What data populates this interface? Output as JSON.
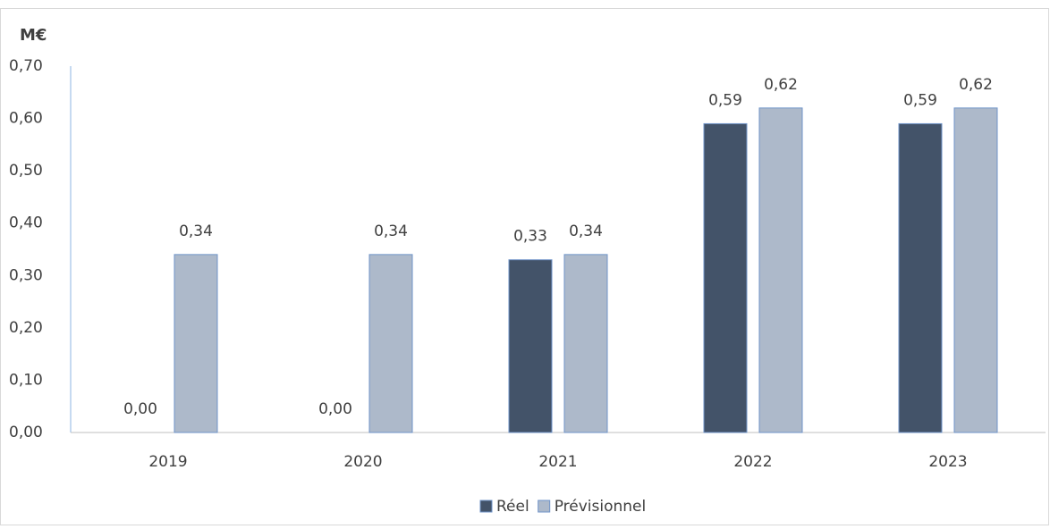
{
  "chart_data": {
    "type": "bar",
    "y_label": "M€",
    "categories": [
      "2019",
      "2020",
      "2021",
      "2022",
      "2023"
    ],
    "series": [
      {
        "name": "Réel",
        "color": "#435369",
        "values": [
          0,
          0,
          0.33,
          0.59,
          0.59
        ],
        "value_labels": [
          "0,00",
          "0,00",
          "0,33",
          "0,59",
          "0,59"
        ]
      },
      {
        "name": "Prévisionnel",
        "color": "#adb9ca",
        "values": [
          0.34,
          0.34,
          0.34,
          0.62,
          0.62
        ],
        "value_labels": [
          "0,34",
          "0,34",
          "0,34",
          "0,62",
          "0,62"
        ]
      }
    ],
    "ylim": [
      0,
      0.7
    ],
    "yticks": [
      {
        "value": 0,
        "label": "0,00"
      },
      {
        "value": 0.1,
        "label": "0,10"
      },
      {
        "value": 0.2,
        "label": "0,20"
      },
      {
        "value": 0.3,
        "label": "0,30"
      },
      {
        "value": 0.4,
        "label": "0,40"
      },
      {
        "value": 0.5,
        "label": "0,50"
      },
      {
        "value": 0.6,
        "label": "0,60"
      },
      {
        "value": 0.7,
        "label": "0,70"
      }
    ],
    "grid": false,
    "legend": "bottom"
  }
}
